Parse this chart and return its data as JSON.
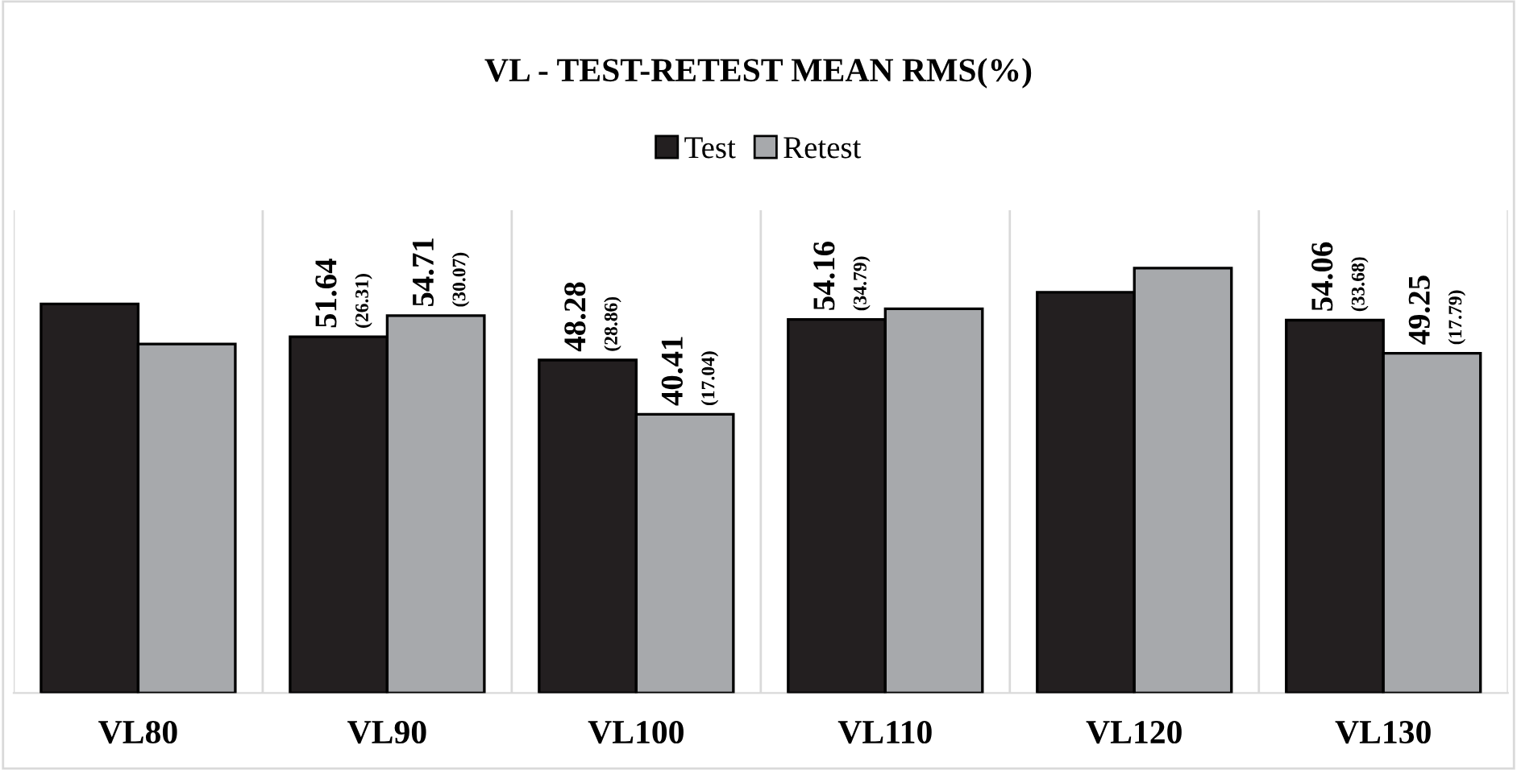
{
  "chart_data": {
    "type": "bar",
    "title": "VL - TEST-RETEST MEAN RMS(%)",
    "categories": [
      "VL80",
      "VL90",
      "VL100",
      "VL110",
      "VL120",
      "VL130"
    ],
    "series": [
      {
        "name": "Test",
        "color": "#231f20",
        "values": [
          56.4,
          51.64,
          48.28,
          54.16,
          58.1,
          54.06
        ],
        "value_labels": [
          null,
          "51.64 (26.31)",
          "48.28 (28.86)",
          "54.16 (34.79)",
          null,
          "54.06 (33.68)"
        ]
      },
      {
        "name": "Retest",
        "color": "#a7a9ac",
        "values": [
          50.6,
          54.71,
          40.41,
          55.7,
          61.6,
          49.25
        ],
        "value_labels": [
          null,
          "54.71 (30.07)",
          "40.41 (17.04)",
          null,
          null,
          "49.25 (17.79)"
        ]
      }
    ],
    "ylim": [
      0,
      70
    ],
    "grid": "x",
    "legend": "top"
  }
}
